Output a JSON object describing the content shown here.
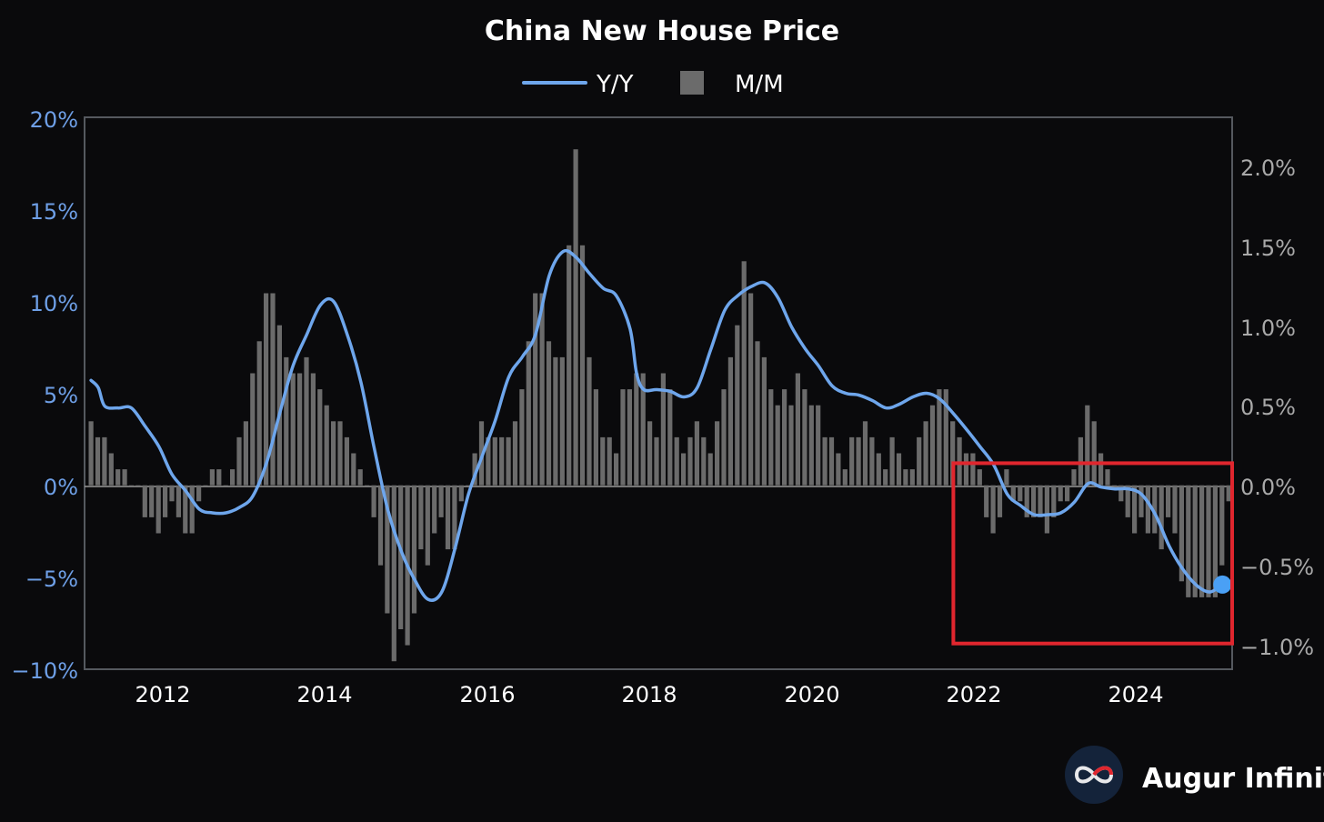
{
  "colors": {
    "background": "#0a0a0c",
    "yy_line": "#6ea6ec",
    "mm_bars": "#6b6b6b",
    "left_axis_text": "#6e9fe6",
    "right_axis_text": "#a9a9a9",
    "highlight_box": "#e0262e",
    "frame": "#55595f"
  },
  "brand": {
    "name": "Augur Infinity",
    "icon": "infinity-logo-icon"
  },
  "chart_data": {
    "type": "bar",
    "title": "China New House Price",
    "legend": {
      "placement": "top-center",
      "entries": [
        "Y/Y",
        "M/M"
      ]
    },
    "x_ticks": [
      "2012",
      "2014",
      "2016",
      "2018",
      "2020",
      "2022",
      "2024"
    ],
    "x_range": [
      2011.0,
      2025.2
    ],
    "y_left": {
      "ticks": [
        "20%",
        "15%",
        "10%",
        "5%",
        "0%",
        "−5%",
        "−10%"
      ],
      "range": [
        -10,
        20
      ]
    },
    "y_right": {
      "ticks": [
        "2.0%",
        "1.5%",
        "1.0%",
        "0.5%",
        "0.0%",
        "−0.5%",
        "−1.0%"
      ],
      "range": [
        -1.15,
        2.3
      ]
    },
    "series": [
      {
        "name": "Y/Y",
        "kind": "line",
        "axis": "left",
        "points": [
          [
            2011.08,
            5.7
          ],
          [
            2011.17,
            5.3
          ],
          [
            2011.25,
            4.3
          ],
          [
            2011.42,
            4.2
          ],
          [
            2011.58,
            4.2
          ],
          [
            2011.75,
            3.2
          ],
          [
            2011.92,
            2.1
          ],
          [
            2012.08,
            0.6
          ],
          [
            2012.25,
            -0.3
          ],
          [
            2012.42,
            -1.3
          ],
          [
            2012.58,
            -1.5
          ],
          [
            2012.75,
            -1.5
          ],
          [
            2012.92,
            -1.2
          ],
          [
            2013.08,
            -0.6
          ],
          [
            2013.25,
            1.2
          ],
          [
            2013.42,
            4.0
          ],
          [
            2013.58,
            6.5
          ],
          [
            2013.75,
            8.2
          ],
          [
            2013.92,
            9.8
          ],
          [
            2014.08,
            10.0
          ],
          [
            2014.25,
            8.2
          ],
          [
            2014.42,
            5.6
          ],
          [
            2014.58,
            2.1
          ],
          [
            2014.75,
            -1.3
          ],
          [
            2014.92,
            -3.6
          ],
          [
            2015.08,
            -5.1
          ],
          [
            2015.25,
            -6.2
          ],
          [
            2015.42,
            -5.8
          ],
          [
            2015.58,
            -3.5
          ],
          [
            2015.75,
            -0.5
          ],
          [
            2015.92,
            1.6
          ],
          [
            2016.08,
            3.5
          ],
          [
            2016.25,
            5.9
          ],
          [
            2016.42,
            7.0
          ],
          [
            2016.58,
            8.2
          ],
          [
            2016.75,
            11.4
          ],
          [
            2016.92,
            12.7
          ],
          [
            2017.08,
            12.4
          ],
          [
            2017.25,
            11.5
          ],
          [
            2017.42,
            10.7
          ],
          [
            2017.58,
            10.3
          ],
          [
            2017.75,
            8.5
          ],
          [
            2017.83,
            6.1
          ],
          [
            2017.92,
            5.2
          ],
          [
            2018.08,
            5.2
          ],
          [
            2018.25,
            5.1
          ],
          [
            2018.42,
            4.8
          ],
          [
            2018.58,
            5.3
          ],
          [
            2018.75,
            7.4
          ],
          [
            2018.92,
            9.5
          ],
          [
            2019.08,
            10.3
          ],
          [
            2019.25,
            10.8
          ],
          [
            2019.42,
            11.0
          ],
          [
            2019.58,
            10.2
          ],
          [
            2019.75,
            8.6
          ],
          [
            2019.92,
            7.4
          ],
          [
            2020.08,
            6.5
          ],
          [
            2020.25,
            5.4
          ],
          [
            2020.42,
            5.0
          ],
          [
            2020.58,
            4.9
          ],
          [
            2020.75,
            4.6
          ],
          [
            2020.92,
            4.2
          ],
          [
            2021.08,
            4.4
          ],
          [
            2021.25,
            4.8
          ],
          [
            2021.42,
            5.0
          ],
          [
            2021.58,
            4.7
          ],
          [
            2021.75,
            3.9
          ],
          [
            2021.92,
            3.0
          ],
          [
            2022.08,
            2.1
          ],
          [
            2022.25,
            1.1
          ],
          [
            2022.42,
            -0.5
          ],
          [
            2022.58,
            -1.1
          ],
          [
            2022.75,
            -1.6
          ],
          [
            2022.92,
            -1.6
          ],
          [
            2023.08,
            -1.5
          ],
          [
            2023.25,
            -0.9
          ],
          [
            2023.42,
            0.1
          ],
          [
            2023.58,
            -0.1
          ],
          [
            2023.75,
            -0.2
          ],
          [
            2023.92,
            -0.2
          ],
          [
            2024.08,
            -0.5
          ],
          [
            2024.25,
            -1.6
          ],
          [
            2024.42,
            -3.3
          ],
          [
            2024.58,
            -4.5
          ],
          [
            2024.75,
            -5.4
          ],
          [
            2024.92,
            -5.8
          ],
          [
            2025.08,
            -5.4
          ]
        ]
      },
      {
        "name": "M/M",
        "kind": "bar",
        "axis": "right",
        "start": 2011.08,
        "step": 0.0833,
        "values": [
          0.4,
          0.3,
          0.3,
          0.2,
          0.1,
          0.1,
          0.0,
          0.0,
          -0.2,
          -0.2,
          -0.3,
          -0.2,
          -0.1,
          -0.2,
          -0.3,
          -0.3,
          -0.1,
          0.0,
          0.1,
          0.1,
          0.0,
          0.1,
          0.3,
          0.4,
          0.7,
          0.9,
          1.2,
          1.2,
          1.0,
          0.8,
          0.7,
          0.7,
          0.8,
          0.7,
          0.6,
          0.5,
          0.4,
          0.4,
          0.3,
          0.2,
          0.1,
          0.0,
          -0.2,
          -0.5,
          -0.8,
          -1.1,
          -0.9,
          -1.0,
          -0.8,
          -0.4,
          -0.5,
          -0.3,
          -0.2,
          -0.4,
          -0.4,
          -0.1,
          0.0,
          0.2,
          0.4,
          0.3,
          0.3,
          0.3,
          0.3,
          0.4,
          0.6,
          0.9,
          1.2,
          1.2,
          0.9,
          0.8,
          0.8,
          1.5,
          2.1,
          1.5,
          0.8,
          0.6,
          0.3,
          0.3,
          0.2,
          0.6,
          0.6,
          0.7,
          0.7,
          0.4,
          0.3,
          0.7,
          0.6,
          0.3,
          0.2,
          0.3,
          0.4,
          0.3,
          0.2,
          0.4,
          0.6,
          0.8,
          1.0,
          1.4,
          1.2,
          0.9,
          0.8,
          0.6,
          0.5,
          0.6,
          0.5,
          0.7,
          0.6,
          0.5,
          0.5,
          0.3,
          0.3,
          0.2,
          0.1,
          0.3,
          0.3,
          0.4,
          0.3,
          0.2,
          0.1,
          0.3,
          0.2,
          0.1,
          0.1,
          0.3,
          0.4,
          0.5,
          0.6,
          0.6,
          0.4,
          0.3,
          0.2,
          0.2,
          0.1,
          -0.2,
          -0.3,
          -0.2,
          0.1,
          -0.1,
          -0.1,
          -0.2,
          -0.2,
          -0.2,
          -0.3,
          -0.2,
          -0.1,
          -0.1,
          0.1,
          0.3,
          0.5,
          0.4,
          0.2,
          0.1,
          0.0,
          -0.1,
          -0.2,
          -0.3,
          -0.2,
          -0.3,
          -0.3,
          -0.4,
          -0.2,
          -0.3,
          -0.6,
          -0.7,
          -0.7,
          -0.7,
          -0.7,
          -0.7,
          -0.5,
          -0.1
        ]
      }
    ],
    "annotations": [
      {
        "type": "highlight-box",
        "x_range": [
          2021.75,
          2025.2
        ],
        "y_left_range": [
          -8.6,
          1.2
        ]
      },
      {
        "type": "end-marker",
        "series": "Y/Y",
        "x": 2025.08,
        "y": -5.4
      }
    ]
  }
}
